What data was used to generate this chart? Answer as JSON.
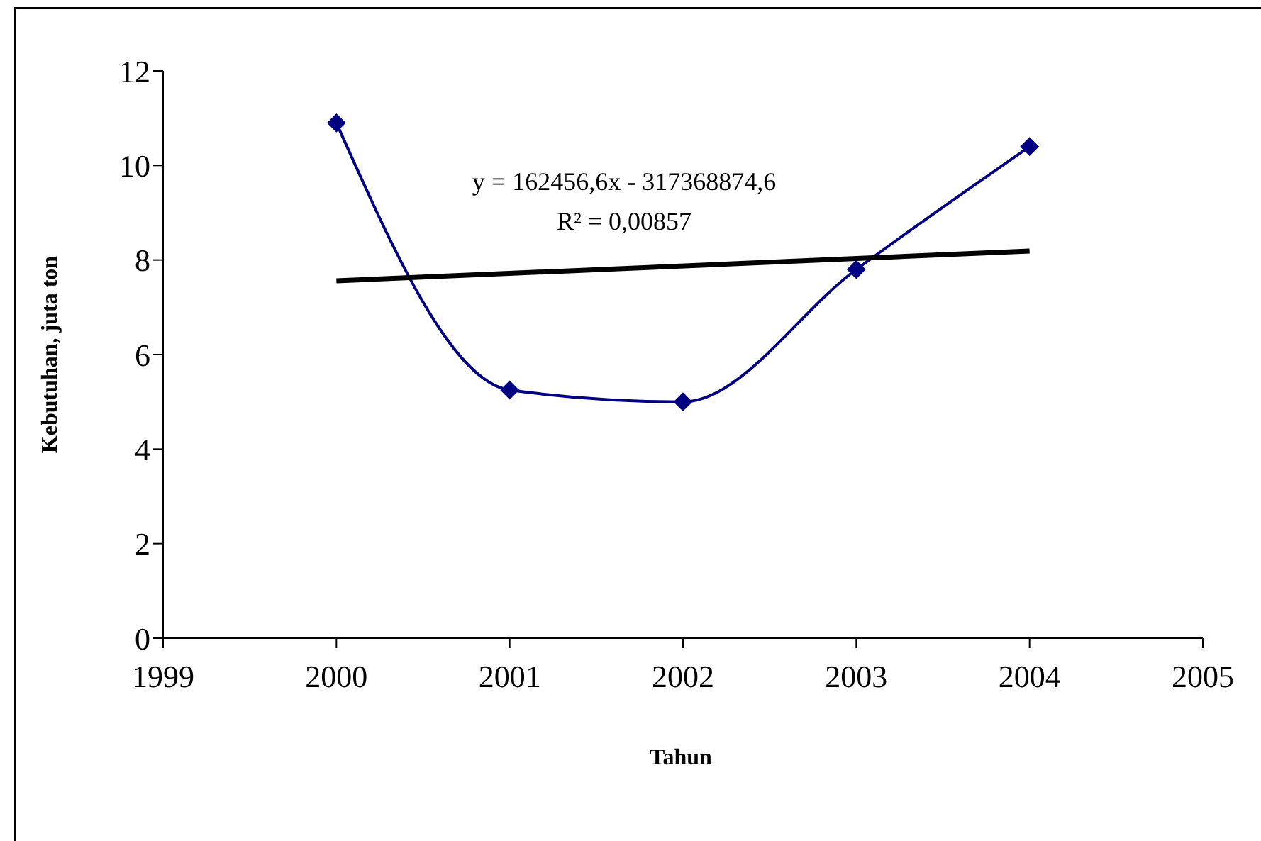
{
  "chart_data": {
    "type": "line",
    "xlabel": "Tahun",
    "ylabel": "Kebutuhan, juta ton",
    "x": [
      2000,
      2001,
      2002,
      2003,
      2004
    ],
    "series": [
      {
        "color": "#000080",
        "values": [
          10.9,
          5.25,
          5.0,
          7.8,
          10.4
        ],
        "marker": "diamond"
      },
      {
        "type": "line",
        "color": "#000000",
        "x": [
          2000,
          2004
        ],
        "values": [
          7.56,
          8.19
        ],
        "marker": "none"
      }
    ],
    "xlim": [
      1999,
      2005
    ],
    "xticks": [
      1999,
      2000,
      2001,
      2002,
      2003,
      2004,
      2005
    ],
    "ylim": [
      0,
      12
    ],
    "yticks": [
      0,
      2,
      4,
      6,
      8,
      10,
      12
    ],
    "annotations": [
      "y = 162456,6x - 317368874,6",
      "R² = 0,00857"
    ]
  }
}
